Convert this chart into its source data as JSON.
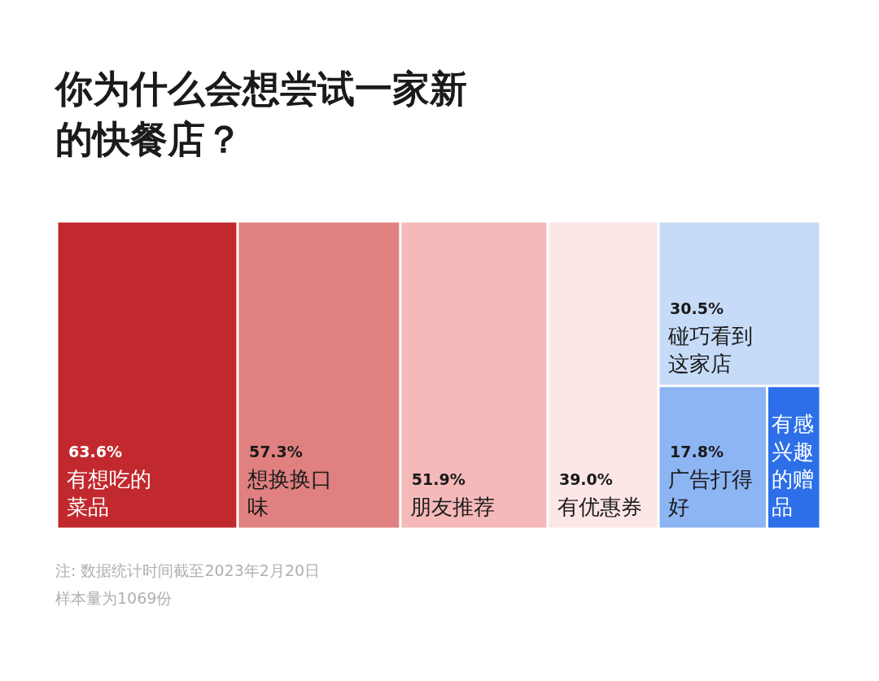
{
  "chart_data": {
    "type": "other",
    "title": "你为什么会想尝试一家新的快餐店？",
    "categories": [
      "有想吃的菜品",
      "想换换口味",
      "朋友推荐",
      "有优惠券",
      "碰巧看到这家店",
      "广告打得好",
      "有感兴趣的赠品"
    ],
    "values": [
      63.6,
      57.3,
      51.9,
      39.0,
      30.5,
      17.8,
      null
    ],
    "value_labels": [
      "63.6%",
      "57.3%",
      "51.9%",
      "39.0%",
      "30.5%",
      "17.8%",
      null
    ],
    "colors": [
      "#c1292e",
      "#e08080",
      "#f5b9b9",
      "#fde6e6",
      "#c6dbf8",
      "#8db5f4",
      "#2d6fe8"
    ],
    "annotations": [
      "注: 数据统计时间截至2023年2月20日",
      "样本量为1069份"
    ]
  }
}
